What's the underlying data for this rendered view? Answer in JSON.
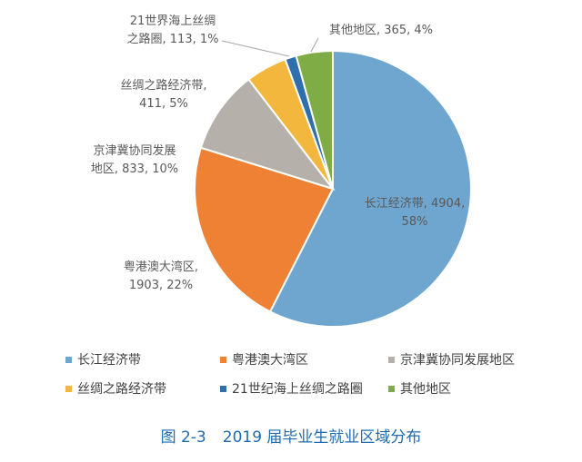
{
  "chart_data": {
    "type": "pie",
    "slices": [
      {
        "label": "长江经济带",
        "value": 4904,
        "percent": "58%",
        "color": "#6ea6d0"
      },
      {
        "label": "粤港澳大湾区",
        "value": 1903,
        "percent": "22%",
        "color": "#ee8133"
      },
      {
        "label": "京津冀协同发展地区",
        "value": 833,
        "percent": "10%",
        "color": "#b5b0a9"
      },
      {
        "label": "丝绸之路经济带",
        "value": 411,
        "percent": "5%",
        "color": "#f3b73d"
      },
      {
        "label": "21世纪海上丝绸之路圈",
        "value": 113,
        "percent": "1%",
        "color": "#2f6fae"
      },
      {
        "label": "其他地区",
        "value": 365,
        "percent": "4%",
        "color": "#7fac45"
      }
    ],
    "data_labels": [
      [
        "长江经济带, 4904,",
        "58%"
      ],
      [
        "粤港澳大湾区,",
        "1903, 22%"
      ],
      [
        "京津冀协同发展",
        "地区, 833, 10%"
      ],
      [
        "丝绸之路经济带,",
        "411, 5%"
      ],
      [
        "21世界海上丝绸",
        "之路圈, 113, 1%"
      ],
      [
        "其他地区, 365, 4%"
      ]
    ],
    "legend_placement": "bottom"
  },
  "caption": {
    "figure_no": "图 2-3",
    "title": "2019 届毕业生就业区域分布"
  }
}
